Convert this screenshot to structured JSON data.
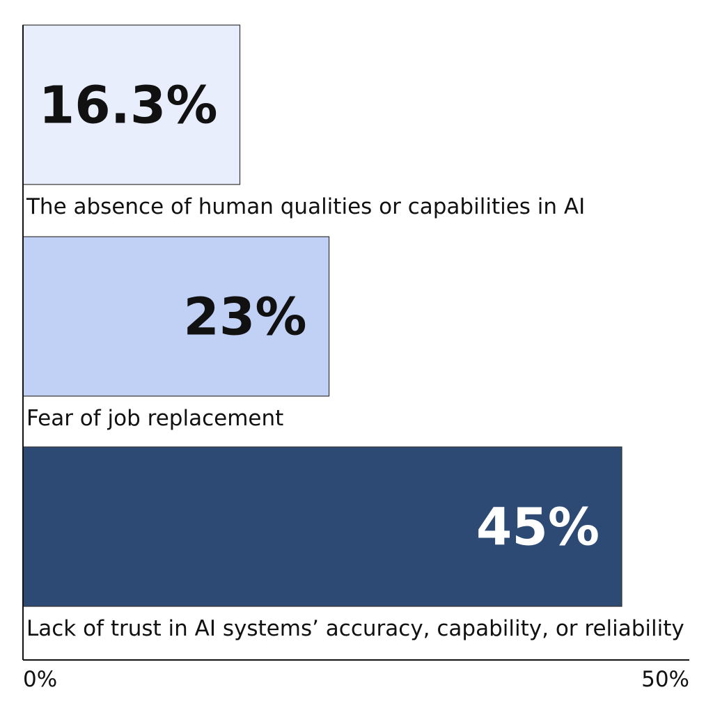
{
  "chart_data": {
    "type": "bar",
    "orientation": "horizontal",
    "categories": [
      "The absence of human qualities or capabilities in AI",
      "Fear of job replacement",
      "Lack of trust in AI systems’ accuracy, capability, or reliability"
    ],
    "values": [
      16.3,
      23,
      45
    ],
    "value_labels": [
      "16.3%",
      "23%",
      "45%"
    ],
    "bar_colors": [
      "#e8eefc",
      "#c1d0f5",
      "#2d4a74"
    ],
    "value_label_colors": [
      "#111111",
      "#111111",
      "#ffffff"
    ],
    "xlim": [
      0,
      50
    ],
    "x_ticks": [
      0,
      50
    ],
    "x_tick_labels": [
      "0%",
      "50%"
    ],
    "grid": false,
    "legend": "none"
  }
}
